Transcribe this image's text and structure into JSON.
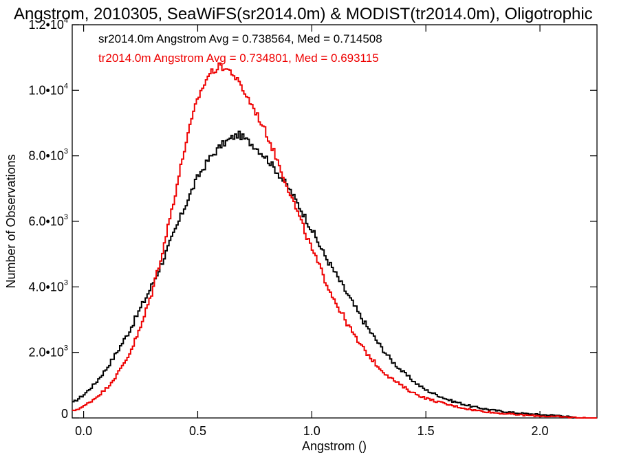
{
  "chart_data": {
    "type": "line",
    "title": "Angstrom, 2010305, SeaWiFS(sr2014.0m) & MODIST(tr2014.0m), Oligotrophic",
    "xlabel": "Angstrom ()",
    "ylabel": "Number of Observations",
    "xlim": [
      -0.05,
      2.25
    ],
    "ylim": [
      0,
      12000
    ],
    "x_ticks": [
      {
        "value": 0.0,
        "label": "0.0"
      },
      {
        "value": 0.5,
        "label": "0.5"
      },
      {
        "value": 1.0,
        "label": "1.0"
      },
      {
        "value": 1.5,
        "label": "1.5"
      },
      {
        "value": 2.0,
        "label": "2.0"
      }
    ],
    "y_ticks": [
      {
        "value": 0,
        "mantissa": "0",
        "exponent": ""
      },
      {
        "value": 2000,
        "mantissa": "2.0•10",
        "exponent": "3"
      },
      {
        "value": 4000,
        "mantissa": "4.0•10",
        "exponent": "3"
      },
      {
        "value": 6000,
        "mantissa": "6.0•10",
        "exponent": "3"
      },
      {
        "value": 8000,
        "mantissa": "8.0•10",
        "exponent": "3"
      },
      {
        "value": 10000,
        "mantissa": "1.0•10",
        "exponent": "4"
      },
      {
        "value": 12000,
        "mantissa": "1.2•10",
        "exponent": "4"
      }
    ],
    "legend": [
      {
        "text": "sr2014.0m Angstrom Avg = 0.738564, Med = 0.714508",
        "color": "#000000"
      },
      {
        "text": "tr2014.0m Angstrom Avg = 0.734801, Med = 0.693115",
        "color": "#ee0000"
      }
    ],
    "grid": false,
    "series": [
      {
        "color": "#000000",
        "step": true,
        "x": [
          -0.05,
          0.0,
          0.05,
          0.1,
          0.15,
          0.2,
          0.25,
          0.3,
          0.35,
          0.4,
          0.45,
          0.5,
          0.55,
          0.6,
          0.65,
          0.68,
          0.7,
          0.75,
          0.8,
          0.85,
          0.9,
          0.95,
          1.0,
          1.05,
          1.1,
          1.15,
          1.2,
          1.25,
          1.3,
          1.35,
          1.4,
          1.45,
          1.5,
          1.6,
          1.7,
          1.8,
          1.9,
          2.0,
          2.1,
          2.15
        ],
        "y": [
          450,
          700,
          1050,
          1500,
          2050,
          2650,
          3350,
          4050,
          4850,
          5700,
          6550,
          7350,
          7900,
          8300,
          8550,
          8650,
          8550,
          8300,
          7950,
          7500,
          7000,
          6400,
          5750,
          5050,
          4450,
          3850,
          3250,
          2700,
          2200,
          1750,
          1400,
          1100,
          850,
          550,
          350,
          230,
          150,
          100,
          70,
          0
        ]
      },
      {
        "color": "#ee0000",
        "step": true,
        "x": [
          -0.05,
          0.0,
          0.05,
          0.1,
          0.15,
          0.2,
          0.25,
          0.3,
          0.35,
          0.4,
          0.45,
          0.5,
          0.55,
          0.6,
          0.65,
          0.7,
          0.75,
          0.8,
          0.85,
          0.9,
          0.95,
          1.0,
          1.05,
          1.1,
          1.15,
          1.2,
          1.25,
          1.3,
          1.35,
          1.4,
          1.45,
          1.5,
          1.6,
          1.7,
          1.8,
          1.9,
          2.0,
          2.1,
          2.2,
          2.25
        ],
        "y": [
          200,
          350,
          600,
          900,
          1350,
          1950,
          2750,
          3850,
          5200,
          6800,
          8450,
          9750,
          10500,
          10750,
          10550,
          10000,
          9400,
          8700,
          7850,
          6950,
          6050,
          5150,
          4350,
          3600,
          2950,
          2350,
          1900,
          1500,
          1200,
          950,
          750,
          600,
          400,
          250,
          160,
          100,
          60,
          30,
          0,
          0
        ]
      }
    ]
  }
}
